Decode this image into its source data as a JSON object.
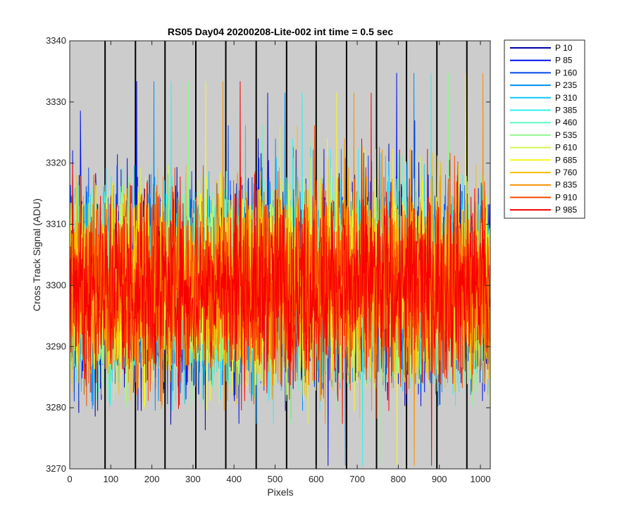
{
  "chart_data": {
    "type": "line",
    "title": "RS05 Day04 20200208-Lite-002 int time = 0.5 sec",
    "xlabel": "Pixels",
    "ylabel": "Cross Track Signal (ADU)",
    "xlim": [
      0,
      1024
    ],
    "ylim": [
      3270,
      3340
    ],
    "xticks": [
      0,
      100,
      200,
      300,
      400,
      500,
      600,
      700,
      800,
      900,
      1000
    ],
    "yticks": [
      3270,
      3280,
      3290,
      3300,
      3310,
      3320,
      3330,
      3340
    ],
    "grid": false,
    "background": "#cccccc",
    "vertical_markers_x": [
      86,
      160,
      232,
      307,
      380,
      454,
      528,
      600,
      674,
      747,
      820,
      894,
      967
    ],
    "vertical_marker_color": "#000000",
    "legend_location": "outside-top-right",
    "series": [
      {
        "name": "P 10",
        "color": "#0000a8"
      },
      {
        "name": "P 85",
        "color": "#0010e8"
      },
      {
        "name": "P 160",
        "color": "#0048f0"
      },
      {
        "name": "P 235",
        "color": "#0090f8"
      },
      {
        "name": "P 310",
        "color": "#10c8f8"
      },
      {
        "name": "P 385",
        "color": "#30f0f0"
      },
      {
        "name": "P 460",
        "color": "#60f8c0"
      },
      {
        "name": "P 535",
        "color": "#90f890"
      },
      {
        "name": "P 610",
        "color": "#d0f850"
      },
      {
        "name": "P 685",
        "color": "#f8f820"
      },
      {
        "name": "P 760",
        "color": "#f8c000"
      },
      {
        "name": "P 835",
        "color": "#f89000"
      },
      {
        "name": "P 910",
        "color": "#f84800"
      },
      {
        "name": "P 985",
        "color": "#f80000"
      }
    ],
    "series_pattern": "noise around 3300 ADU across 1024 pixels; occasional spikes",
    "series_mean": 3300,
    "series_spread": 12,
    "series_points": 1024
  }
}
